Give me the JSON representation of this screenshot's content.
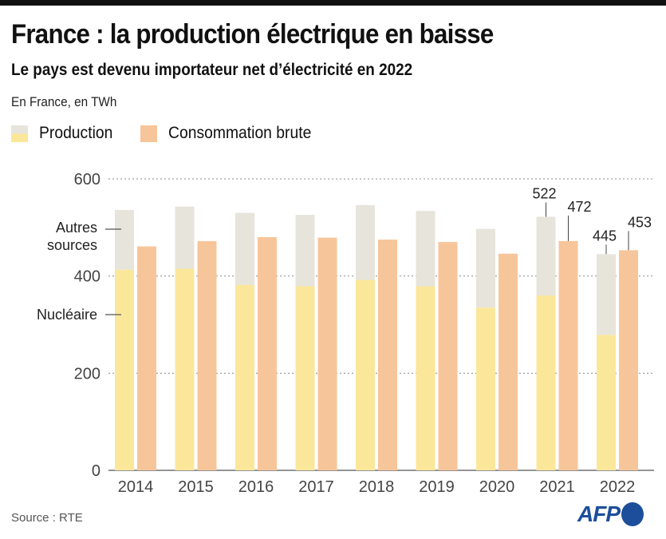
{
  "header": {
    "title": "France : la production électrique en baisse",
    "subtitle": "Le pays est devenu importateur net d’électricité en 2022",
    "unit": "En France, en TWh"
  },
  "legend": [
    {
      "label": "Production",
      "color_top": "#e7e4dc",
      "color_bottom": "#fbe79a"
    },
    {
      "label": "Consommation brute",
      "color": "#f7c59a"
    }
  ],
  "footer": {
    "source": "Source : RTE",
    "logo": "AFP"
  },
  "colors": {
    "nuclear": "#fbe79a",
    "other": "#e7e4dc",
    "consumption": "#f7c59a",
    "afp_blue": "#1c4e9b"
  },
  "chart_data": {
    "type": "bar",
    "title": "France : la production électrique en baisse",
    "subtitle": "Le pays est devenu importateur net d’électricité en 2022",
    "ylabel": "TWh",
    "xlabel": "",
    "ylim": [
      0,
      600
    ],
    "yticks": [
      0,
      200,
      400,
      600
    ],
    "grid": true,
    "categories": [
      "2014",
      "2015",
      "2016",
      "2017",
      "2018",
      "2019",
      "2020",
      "2021",
      "2022"
    ],
    "series": [
      {
        "name": "Nucléaire",
        "stack": "Production",
        "values": [
          413,
          415,
          382,
          379,
          392,
          379,
          335,
          360,
          279
        ]
      },
      {
        "name": "Autres sources",
        "stack": "Production",
        "values": [
          123,
          128,
          148,
          147,
          154,
          155,
          162,
          162,
          166
        ]
      },
      {
        "name": "Production (total)",
        "values": [
          536,
          543,
          530,
          526,
          546,
          534,
          497,
          522,
          445
        ]
      },
      {
        "name": "Consommation brute",
        "values": [
          461,
          472,
          480,
          479,
          475,
          470,
          446,
          472,
          453
        ]
      }
    ],
    "annotations": [
      {
        "text": "522",
        "category": "2021",
        "series": "Production (total)"
      },
      {
        "text": "472",
        "category": "2021",
        "series": "Consommation brute"
      },
      {
        "text": "445",
        "category": "2022",
        "series": "Production (total)"
      },
      {
        "text": "453",
        "category": "2022",
        "series": "Consommation brute"
      }
    ],
    "side_labels": [
      "Autres sources",
      "Nucléaire"
    ],
    "legend_position": "top-left"
  }
}
